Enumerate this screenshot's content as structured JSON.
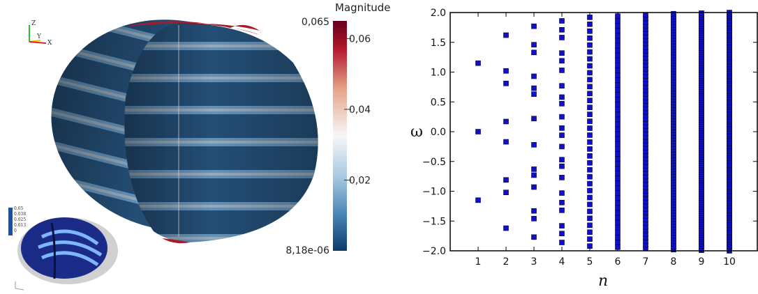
{
  "visualization": {
    "orientation_axes": {
      "z_label": "Z",
      "y_label": "Y",
      "x_label": "X"
    },
    "colorbar": {
      "title": "Magnitude",
      "max_label": "0,065",
      "min_label": "8,18e-06",
      "tick_labels": [
        "0,06",
        "0,04",
        "0,02"
      ],
      "tick_values": [
        0.06,
        0.04,
        0.02
      ],
      "range": [
        8.18e-06,
        0.065
      ],
      "colors": {
        "top": "#67001f",
        "upper": "#d6604d",
        "middle": "#f7f7f7",
        "lower": "#6fa2c9",
        "bottom": "#0b3a6a"
      }
    },
    "inset": {
      "legend_labels": [
        "0.05",
        "0.038",
        "0.025",
        "0.013",
        "0"
      ]
    }
  },
  "chart_data": {
    "type": "scatter",
    "xlabel": "n",
    "ylabel": "ω",
    "xlim": [
      0,
      11
    ],
    "ylim": [
      -2.0,
      2.0
    ],
    "x_ticks": [
      1,
      2,
      3,
      4,
      5,
      6,
      7,
      8,
      9,
      10
    ],
    "y_ticks": [
      -2.0,
      -1.5,
      -1.0,
      -0.5,
      0.0,
      0.5,
      1.0,
      1.5,
      2.0
    ],
    "y_tick_labels": [
      "−2.0",
      "−1.5",
      "−1.0",
      "−0.5",
      "0.0",
      "0.5",
      "1.0",
      "1.5",
      "2.0"
    ],
    "marker_color": "#1010c8",
    "grid": false,
    "points": [
      {
        "n": 1,
        "w": [
          1.15,
          0.0,
          -1.15
        ]
      },
      {
        "n": 2,
        "w": [
          1.62,
          1.02,
          0.81,
          0.17,
          -0.17,
          -0.81,
          -1.02,
          -1.62
        ]
      },
      {
        "n": 3,
        "w": [
          1.77,
          1.46,
          1.33,
          0.93,
          0.73,
          0.63,
          0.22,
          -0.22,
          -0.63,
          -0.73,
          -0.93,
          -1.33,
          -1.46,
          -1.77
        ]
      },
      {
        "n": 4,
        "w": [
          1.86,
          1.71,
          1.58,
          1.32,
          1.19,
          1.03,
          0.77,
          0.58,
          0.47,
          0.25,
          0.06,
          -0.06,
          -0.25,
          -0.47,
          -0.58,
          -0.77,
          -1.03,
          -1.19,
          -1.32,
          -1.58,
          -1.71,
          -1.86
        ]
      },
      {
        "n": 5,
        "denseFrom": -1.92,
        "denseTo": 1.92,
        "count": 34
      },
      {
        "n": 6,
        "denseFrom": -1.94,
        "denseTo": 1.94,
        "count": 48
      },
      {
        "n": 7,
        "denseFrom": -1.96,
        "denseTo": 1.96,
        "count": 66
      },
      {
        "n": 8,
        "denseFrom": -1.98,
        "denseTo": 1.98,
        "count": 86
      },
      {
        "n": 9,
        "denseFrom": -1.99,
        "denseTo": 1.99,
        "count": 110
      },
      {
        "n": 10,
        "denseFrom": -2.0,
        "denseTo": 2.0,
        "count": 140
      }
    ]
  }
}
